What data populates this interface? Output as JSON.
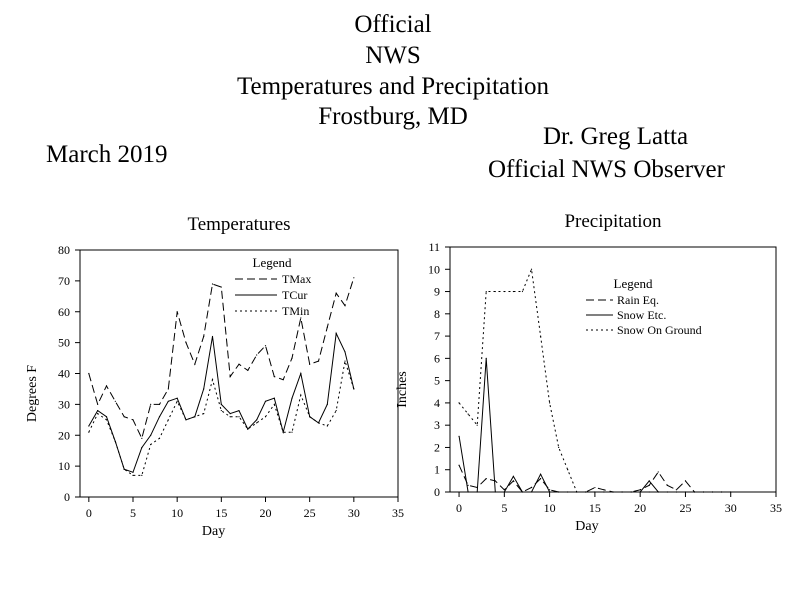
{
  "header": {
    "title_lines": [
      "Official",
      "NWS",
      "Temperatures and Precipitation",
      "Frostburg, MD"
    ],
    "month": "March 2019",
    "observer_name": "Dr. Greg Latta",
    "observer_title": "Official NWS Observer"
  },
  "chart_data": [
    {
      "type": "line",
      "title": "Temperatures",
      "xlabel": "Day",
      "ylabel": "Degrees F",
      "xlim": [
        -1,
        35
      ],
      "ylim": [
        0,
        80
      ],
      "xticks": [
        0,
        5,
        10,
        15,
        20,
        25,
        30,
        35
      ],
      "yticks": [
        0,
        10,
        20,
        30,
        40,
        50,
        60,
        70,
        80
      ],
      "legend_title": "Legend",
      "legend_position": "top-right",
      "x": [
        0,
        1,
        2,
        3,
        4,
        5,
        6,
        7,
        8,
        9,
        10,
        11,
        12,
        13,
        14,
        15,
        16,
        17,
        18,
        19,
        20,
        21,
        22,
        23,
        24,
        25,
        26,
        27,
        28,
        29,
        30
      ],
      "series": [
        {
          "name": "TMax",
          "style": "dashed",
          "values": [
            40,
            30,
            36,
            31,
            26,
            25,
            19,
            30,
            30,
            35,
            60,
            50,
            43,
            52,
            69,
            68,
            39,
            43,
            41,
            46,
            49,
            39,
            38,
            45,
            58,
            43,
            44,
            55,
            66,
            62,
            71
          ]
        },
        {
          "name": "TCur",
          "style": "solid",
          "values": [
            23,
            28,
            26,
            18,
            9,
            8,
            16,
            20,
            26,
            31,
            32,
            25,
            26,
            35,
            52,
            30,
            27,
            28,
            22,
            25,
            31,
            32,
            21,
            32,
            40,
            26,
            24,
            30,
            53,
            47,
            35
          ]
        },
        {
          "name": "TMin",
          "style": "dotted",
          "values": [
            21,
            27,
            25,
            18,
            9,
            7,
            7,
            17,
            19,
            25,
            31,
            25,
            26,
            27,
            38,
            28,
            26,
            26,
            22,
            24,
            26,
            30,
            21,
            21,
            33,
            26,
            24,
            23,
            28,
            44,
            35
          ]
        }
      ]
    },
    {
      "type": "line",
      "title": "Precipitation",
      "xlabel": "Day",
      "ylabel": "Inches",
      "xlim": [
        -1,
        35
      ],
      "ylim": [
        0,
        11
      ],
      "xticks": [
        0,
        5,
        10,
        15,
        20,
        25,
        30,
        35
      ],
      "yticks": [
        0,
        1,
        2,
        3,
        4,
        5,
        6,
        7,
        8,
        9,
        10,
        11
      ],
      "legend_title": "Legend",
      "legend_position": "top-center",
      "x": [
        0,
        1,
        2,
        3,
        4,
        5,
        6,
        7,
        8,
        9,
        10,
        11,
        12,
        13,
        14,
        15,
        16,
        17,
        18,
        19,
        20,
        21,
        22,
        23,
        24,
        25,
        26,
        27,
        28,
        29,
        30
      ],
      "series": [
        {
          "name": "Rain Eq.",
          "style": "dashed",
          "values": [
            1.2,
            0.3,
            0.2,
            0.6,
            0.5,
            0.1,
            0.5,
            0,
            0.2,
            0.6,
            0.1,
            0,
            0,
            0,
            0,
            0.2,
            0.1,
            0,
            0,
            0,
            0.1,
            0.3,
            0.9,
            0.3,
            0.1,
            0.5,
            0,
            0,
            0,
            0,
            0
          ]
        },
        {
          "name": "Snow Etc.",
          "style": "solid",
          "values": [
            2.5,
            0,
            0,
            6,
            0,
            0,
            0.7,
            0,
            0,
            0.8,
            0,
            0,
            0,
            0,
            0,
            0,
            0,
            0,
            0,
            0,
            0,
            0.5,
            0,
            0,
            0,
            0,
            0,
            0,
            0,
            0,
            0
          ]
        },
        {
          "name": "Snow On Ground",
          "style": "dotted",
          "values": [
            4,
            3.5,
            3,
            9,
            9,
            9,
            9,
            9,
            10,
            7,
            4,
            2,
            1,
            0,
            0,
            0,
            0,
            0,
            0,
            0,
            0,
            0,
            0,
            0,
            0,
            0,
            0,
            0,
            0,
            0,
            0
          ]
        }
      ]
    }
  ]
}
